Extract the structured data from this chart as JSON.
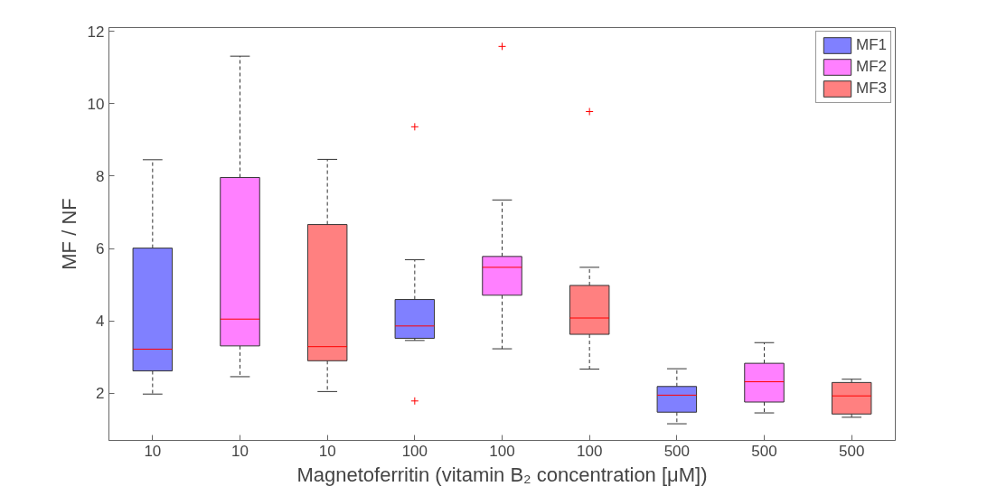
{
  "chart_data": {
    "type": "box",
    "xlabel": "Magnetoferritin (vitamin B₂ concentration [μM])",
    "ylabel": "MF / NF",
    "categories": [
      "10",
      "10",
      "10",
      "100",
      "100",
      "100",
      "500",
      "500",
      "500"
    ],
    "ylim": [
      0.7,
      12.1
    ],
    "yticks": [
      2,
      4,
      6,
      8,
      10,
      12
    ],
    "grid": false,
    "legend": "top right",
    "series": [
      {
        "name": "MF1",
        "color": "#8080ff",
        "boxes": [
          {
            "low": 1.98,
            "q1": 2.62,
            "median": 3.22,
            "q3": 6.01,
            "high": 8.45
          },
          null,
          null,
          {
            "low": 3.46,
            "q1": 3.52,
            "median": 3.86,
            "q3": 4.59,
            "high": 5.69,
            "outliers": [
              9.36,
              1.79
            ]
          },
          null,
          null,
          {
            "low": 1.16,
            "q1": 1.48,
            "median": 1.95,
            "q3": 2.19,
            "high": 2.68
          },
          null,
          null
        ]
      },
      {
        "name": "MF2",
        "color": "#ff80ff",
        "boxes": [
          null,
          {
            "low": 2.46,
            "q1": 3.31,
            "median": 4.05,
            "q3": 7.96,
            "high": 11.31
          },
          null,
          null,
          {
            "low": 3.23,
            "q1": 4.71,
            "median": 5.48,
            "q3": 5.78,
            "high": 7.34,
            "outliers": [
              11.58
            ]
          },
          null,
          null,
          {
            "low": 1.46,
            "q1": 1.76,
            "median": 2.32,
            "q3": 2.83,
            "high": 3.4
          },
          null
        ]
      },
      {
        "name": "MF3",
        "color": "#ff8080",
        "boxes": [
          null,
          null,
          {
            "low": 2.05,
            "q1": 2.9,
            "median": 3.29,
            "q3": 6.66,
            "high": 8.46
          },
          null,
          null,
          {
            "low": 2.67,
            "q1": 3.63,
            "median": 4.08,
            "q3": 4.98,
            "high": 5.48,
            "outliers": [
              9.78
            ]
          },
          null,
          null,
          {
            "low": 1.34,
            "q1": 1.43,
            "median": 1.93,
            "q3": 2.3,
            "high": 2.39
          }
        ]
      }
    ]
  }
}
